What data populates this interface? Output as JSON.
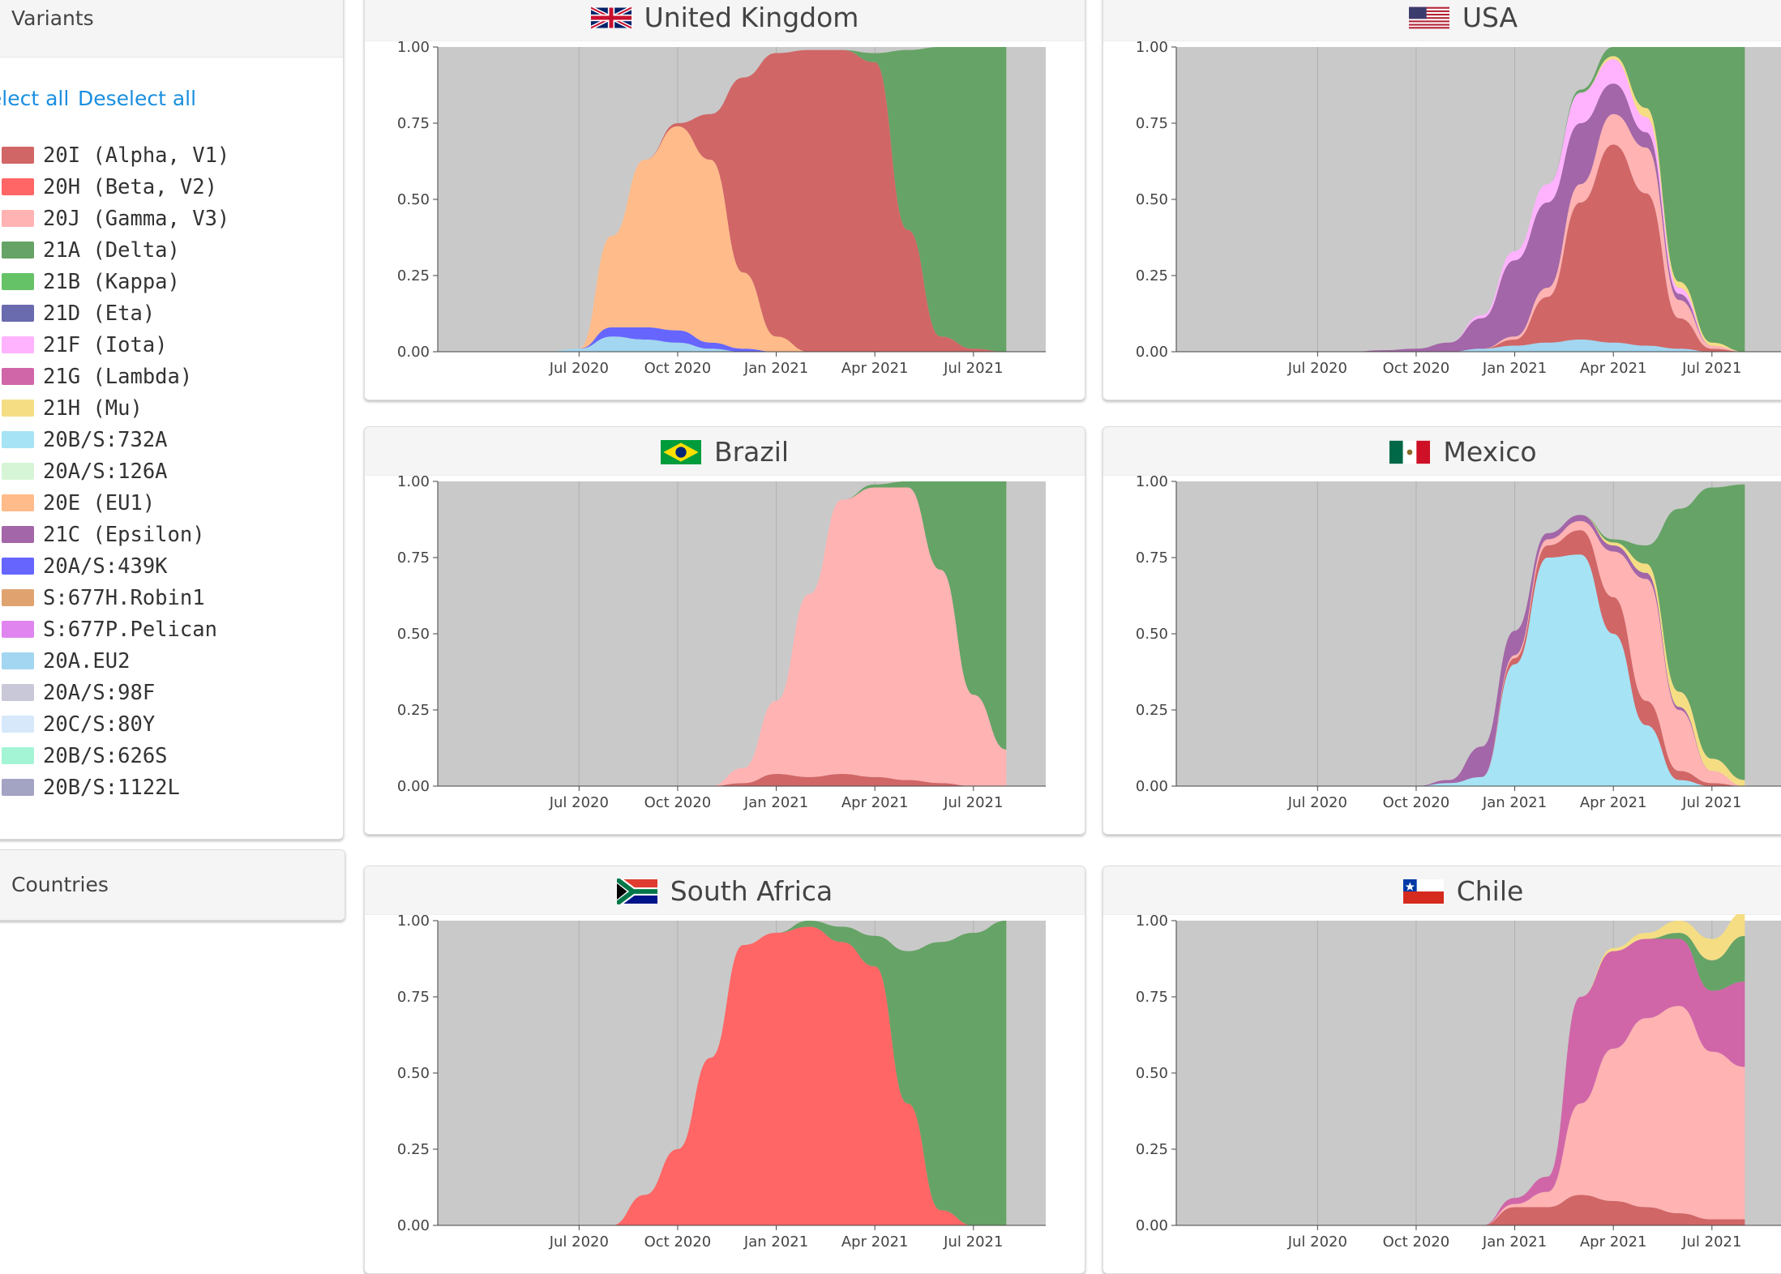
{
  "sidebar": {
    "variants_title": "Variants",
    "select_all": "Select all",
    "deselect_all": "Deselect all",
    "countries_title": "Countries",
    "variants": [
      {
        "label": "20I (Alpha, V1)",
        "color": "#d16666"
      },
      {
        "label": "20H (Beta, V2)",
        "color": "#ff6665"
      },
      {
        "label": "20J (Gamma, V3)",
        "color": "#ffb3b3"
      },
      {
        "label": "21A (Delta)",
        "color": "#66a366"
      },
      {
        "label": "21B (Kappa)",
        "color": "#66c266"
      },
      {
        "label": "21D (Eta)",
        "color": "#6a6aaf"
      },
      {
        "label": "21F (Iota)",
        "color": "#ffb3ff"
      },
      {
        "label": "21G (Lambda)",
        "color": "#d066a8"
      },
      {
        "label": "21H (Mu)",
        "color": "#f5dd84"
      },
      {
        "label": "20B/S:732A",
        "color": "#a5e3f5"
      },
      {
        "label": "20A/S:126A",
        "color": "#d6f5d6"
      },
      {
        "label": "20E (EU1)",
        "color": "#ffbb8a"
      },
      {
        "label": "21C (Epsilon)",
        "color": "#a366a8"
      },
      {
        "label": "20A/S:439K",
        "color": "#6666ff"
      },
      {
        "label": "S:677H.Robin1",
        "color": "#e0a370"
      },
      {
        "label": "S:677P.Pelican",
        "color": "#e085f0"
      },
      {
        "label": "20A.EU2",
        "color": "#a3d6f0"
      },
      {
        "label": "20A/S:98F",
        "color": "#c8c8d8"
      },
      {
        "label": "20C/S:80Y",
        "color": "#d6e8fa"
      },
      {
        "label": "20B/S:626S",
        "color": "#a3f5d6"
      },
      {
        "label": "20B/S:1122L",
        "color": "#a3a3c4"
      }
    ]
  },
  "chart_data": [
    {
      "type": "area",
      "country": "United Kingdom",
      "flag": "uk-flag-icon",
      "x": [
        "2020-06",
        "2020-07",
        "2020-08",
        "2020-09",
        "2020-10",
        "2020-11",
        "2020-12",
        "2021-01",
        "2021-02",
        "2021-03",
        "2021-04",
        "2021-05",
        "2021-06",
        "2021-07",
        "2021-08"
      ],
      "x_ticks": [
        "Jul 2020",
        "Oct 2020",
        "Jan 2021",
        "Apr 2021",
        "Jul 2021"
      ],
      "y_ticks": [
        "0.00",
        "0.25",
        "0.50",
        "0.75",
        "1.00"
      ],
      "ylim": [
        0,
        1
      ],
      "series": [
        {
          "variant": "20A.EU2",
          "values": [
            0,
            0.01,
            0.05,
            0.04,
            0.03,
            0.01,
            0,
            0,
            0,
            0,
            0,
            0,
            0,
            0,
            0
          ]
        },
        {
          "variant": "20A/S:439K",
          "values": [
            0,
            0,
            0.03,
            0.04,
            0.04,
            0.02,
            0.01,
            0,
            0,
            0,
            0,
            0,
            0,
            0,
            0
          ]
        },
        {
          "variant": "20E (EU1)",
          "values": [
            0,
            0,
            0.3,
            0.55,
            0.67,
            0.6,
            0.25,
            0.05,
            0,
            0,
            0,
            0,
            0,
            0,
            0
          ]
        },
        {
          "variant": "20I (Alpha, V1)",
          "values": [
            0,
            0,
            0,
            0,
            0.01,
            0.15,
            0.64,
            0.93,
            0.99,
            0.99,
            0.95,
            0.4,
            0.05,
            0.01,
            0
          ]
        },
        {
          "variant": "21A (Delta)",
          "values": [
            0,
            0,
            0,
            0,
            0,
            0,
            0,
            0,
            0,
            0,
            0.03,
            0.59,
            0.95,
            0.99,
            1
          ]
        }
      ]
    },
    {
      "type": "area",
      "country": "USA",
      "flag": "us-flag-icon",
      "x": [
        "2020-06",
        "2020-07",
        "2020-08",
        "2020-09",
        "2020-10",
        "2020-11",
        "2020-12",
        "2021-01",
        "2021-02",
        "2021-03",
        "2021-04",
        "2021-05",
        "2021-06",
        "2021-07",
        "2021-08"
      ],
      "x_ticks": [
        "Jul 2020",
        "Oct 2020",
        "Jan 2021",
        "Apr 2021",
        "Jul 2021"
      ],
      "y_ticks": [
        "0.00",
        "0.25",
        "0.50",
        "0.75",
        "1.00"
      ],
      "ylim": [
        0,
        1
      ],
      "series": [
        {
          "variant": "20A.EU2",
          "values": [
            0,
            0,
            0,
            0,
            0,
            0,
            0.01,
            0.02,
            0.03,
            0.04,
            0.03,
            0.02,
            0.01,
            0,
            0
          ]
        },
        {
          "variant": "20I (Alpha, V1)",
          "values": [
            0,
            0,
            0,
            0,
            0,
            0,
            0,
            0.02,
            0.15,
            0.45,
            0.65,
            0.5,
            0.1,
            0.01,
            0
          ]
        },
        {
          "variant": "20J (Gamma, V3)",
          "values": [
            0,
            0,
            0,
            0,
            0,
            0,
            0,
            0.01,
            0.03,
            0.06,
            0.1,
            0.15,
            0.06,
            0.01,
            0
          ]
        },
        {
          "variant": "21C (Epsilon)",
          "values": [
            0,
            0,
            0,
            0.005,
            0.01,
            0.03,
            0.1,
            0.25,
            0.28,
            0.2,
            0.1,
            0.05,
            0.02,
            0,
            0
          ]
        },
        {
          "variant": "21F (Iota)",
          "values": [
            0,
            0,
            0,
            0,
            0,
            0,
            0.01,
            0.03,
            0.06,
            0.1,
            0.08,
            0.05,
            0.02,
            0,
            0
          ]
        },
        {
          "variant": "21H (Mu)",
          "values": [
            0,
            0,
            0,
            0,
            0,
            0,
            0,
            0,
            0,
            0,
            0.01,
            0.03,
            0.02,
            0.01,
            0
          ]
        },
        {
          "variant": "21A (Delta)",
          "values": [
            0,
            0,
            0,
            0,
            0,
            0,
            0,
            0,
            0,
            0.01,
            0.03,
            0.2,
            0.77,
            0.97,
            1
          ]
        }
      ]
    },
    {
      "type": "area",
      "country": "Brazil",
      "flag": "brazil-flag-icon",
      "x": [
        "2020-06",
        "2020-07",
        "2020-08",
        "2020-09",
        "2020-10",
        "2020-11",
        "2020-12",
        "2021-01",
        "2021-02",
        "2021-03",
        "2021-04",
        "2021-05",
        "2021-06",
        "2021-07",
        "2021-08"
      ],
      "x_ticks": [
        "Jul 2020",
        "Oct 2020",
        "Jan 2021",
        "Apr 2021",
        "Jul 2021"
      ],
      "y_ticks": [
        "0.00",
        "0.25",
        "0.50",
        "0.75",
        "1.00"
      ],
      "ylim": [
        0,
        1
      ],
      "series": [
        {
          "variant": "20I (Alpha, V1)",
          "values": [
            0,
            0,
            0,
            0,
            0,
            0,
            0.01,
            0.04,
            0.03,
            0.04,
            0.03,
            0.02,
            0.01,
            0,
            0
          ]
        },
        {
          "variant": "20J (Gamma, V3)",
          "values": [
            0,
            0,
            0,
            0,
            0,
            0,
            0.05,
            0.24,
            0.6,
            0.9,
            0.95,
            0.96,
            0.7,
            0.3,
            0.12
          ]
        },
        {
          "variant": "21A (Delta)",
          "values": [
            0,
            0,
            0,
            0,
            0,
            0,
            0,
            0,
            0,
            0,
            0.01,
            0.02,
            0.29,
            0.7,
            0.88
          ]
        }
      ]
    },
    {
      "type": "area",
      "country": "Mexico",
      "flag": "mexico-flag-icon",
      "x": [
        "2020-06",
        "2020-07",
        "2020-08",
        "2020-09",
        "2020-10",
        "2020-11",
        "2020-12",
        "2021-01",
        "2021-02",
        "2021-03",
        "2021-04",
        "2021-05",
        "2021-06",
        "2021-07",
        "2021-08"
      ],
      "x_ticks": [
        "Jul 2020",
        "Oct 2020",
        "Jan 2021",
        "Apr 2021",
        "Jul 2021"
      ],
      "y_ticks": [
        "0.00",
        "0.25",
        "0.50",
        "0.75",
        "1.00"
      ],
      "ylim": [
        0,
        1
      ],
      "series": [
        {
          "variant": "20B/S:732A",
          "values": [
            0,
            0,
            0,
            0,
            0,
            0.01,
            0.03,
            0.4,
            0.75,
            0.76,
            0.5,
            0.2,
            0.02,
            0,
            0
          ]
        },
        {
          "variant": "20I (Alpha, V1)",
          "values": [
            0,
            0,
            0,
            0,
            0,
            0,
            0,
            0.02,
            0.04,
            0.08,
            0.12,
            0.08,
            0.03,
            0.01,
            0
          ]
        },
        {
          "variant": "20J (Gamma, V3)",
          "values": [
            0,
            0,
            0,
            0,
            0,
            0,
            0,
            0.01,
            0.02,
            0.03,
            0.15,
            0.4,
            0.2,
            0.04,
            0
          ]
        },
        {
          "variant": "21C (Epsilon)",
          "values": [
            0,
            0,
            0,
            0,
            0,
            0.01,
            0.1,
            0.08,
            0.02,
            0.02,
            0.02,
            0.02,
            0.01,
            0,
            0
          ]
        },
        {
          "variant": "21H (Mu)",
          "values": [
            0,
            0,
            0,
            0,
            0,
            0,
            0,
            0,
            0,
            0,
            0.01,
            0.03,
            0.05,
            0.04,
            0.02
          ]
        },
        {
          "variant": "21A (Delta)",
          "values": [
            0,
            0,
            0,
            0,
            0,
            0,
            0,
            0,
            0,
            0,
            0.01,
            0.06,
            0.6,
            0.89,
            0.97
          ]
        }
      ]
    },
    {
      "type": "area",
      "country": "South Africa",
      "flag": "south-africa-flag-icon",
      "x": [
        "2020-06",
        "2020-07",
        "2020-08",
        "2020-09",
        "2020-10",
        "2020-11",
        "2020-12",
        "2021-01",
        "2021-02",
        "2021-03",
        "2021-04",
        "2021-05",
        "2021-06",
        "2021-07",
        "2021-08"
      ],
      "x_ticks": [
        "Jul 2020",
        "Oct 2020",
        "Jan 2021",
        "Apr 2021",
        "Jul 2021"
      ],
      "y_ticks": [
        "0.00",
        "0.25",
        "0.50",
        "0.75",
        "1.00"
      ],
      "ylim": [
        0,
        1
      ],
      "series": [
        {
          "variant": "20H (Beta, V2)",
          "values": [
            0,
            0,
            0,
            0.1,
            0.25,
            0.55,
            0.92,
            0.96,
            0.98,
            0.93,
            0.85,
            0.4,
            0.05,
            0,
            0
          ]
        },
        {
          "variant": "21A (Delta)",
          "values": [
            0,
            0,
            0,
            0,
            0,
            0,
            0,
            0,
            0.02,
            0.05,
            0.1,
            0.5,
            0.88,
            0.96,
            1
          ]
        }
      ]
    },
    {
      "type": "area",
      "country": "Chile",
      "flag": "chile-flag-icon",
      "x": [
        "2020-06",
        "2020-07",
        "2020-08",
        "2020-09",
        "2020-10",
        "2020-11",
        "2020-12",
        "2021-01",
        "2021-02",
        "2021-03",
        "2021-04",
        "2021-05",
        "2021-06",
        "2021-07",
        "2021-08"
      ],
      "x_ticks": [
        "Jul 2020",
        "Oct 2020",
        "Jan 2021",
        "Apr 2021",
        "Jul 2021"
      ],
      "y_ticks": [
        "0.00",
        "0.25",
        "0.50",
        "0.75",
        "1.00"
      ],
      "ylim": [
        0,
        1
      ],
      "series": [
        {
          "variant": "20I (Alpha, V1)",
          "values": [
            0,
            0,
            0,
            0,
            0,
            0,
            0,
            0.06,
            0.06,
            0.1,
            0.08,
            0.06,
            0.04,
            0.02,
            0.02
          ]
        },
        {
          "variant": "20J (Gamma, V3)",
          "values": [
            0,
            0,
            0,
            0,
            0,
            0,
            0,
            0.01,
            0.05,
            0.3,
            0.5,
            0.62,
            0.68,
            0.55,
            0.5
          ]
        },
        {
          "variant": "21G (Lambda)",
          "values": [
            0,
            0,
            0,
            0,
            0,
            0,
            0,
            0.02,
            0.05,
            0.35,
            0.32,
            0.26,
            0.22,
            0.2,
            0.28
          ]
        },
        {
          "variant": "21A (Delta)",
          "values": [
            0,
            0,
            0,
            0,
            0,
            0,
            0,
            0,
            0,
            0,
            0,
            0,
            0.02,
            0.1,
            0.15
          ]
        },
        {
          "variant": "21H (Mu)",
          "values": [
            0,
            0,
            0,
            0,
            0,
            0,
            0,
            0,
            0,
            0,
            0.01,
            0.02,
            0.04,
            0.07,
            0.08
          ]
        }
      ]
    }
  ]
}
